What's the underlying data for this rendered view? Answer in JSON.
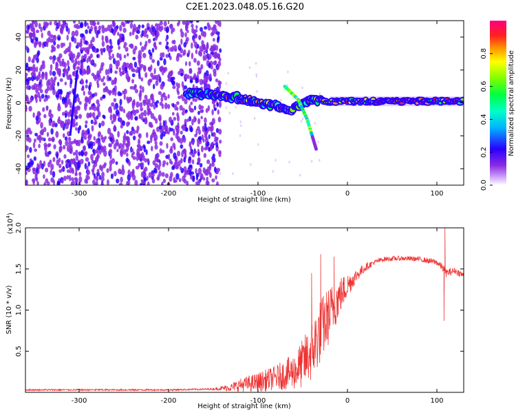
{
  "title": "C2E1.2023.048.05.16.G20",
  "chart_data": [
    {
      "type": "heatmap",
      "xlabel": "Height of straight line (km)",
      "ylabel": "Frequency (Hz)",
      "xlim": [
        -360,
        130
      ],
      "ylim": [
        -50,
        50
      ],
      "xticks": [
        -300,
        -200,
        -100,
        0,
        100
      ],
      "yticks": [
        -40,
        -20,
        0,
        20,
        40
      ],
      "colorbar": {
        "label": "Normalized spectral amplitude",
        "range": [
          0.0,
          1.0
        ],
        "ticks": [
          "0.0",
          "0.2",
          "0.4",
          "0.6",
          "0.8"
        ],
        "colormap": "white-purple-blue-cyan-green-yellow-red-magenta"
      },
      "features": {
        "noise_region_x": [
          -360,
          -150
        ],
        "ridge_points": [
          {
            "x": -180,
            "y": 6
          },
          {
            "x": -150,
            "y": 5
          },
          {
            "x": -120,
            "y": 3
          },
          {
            "x": -100,
            "y": 0
          },
          {
            "x": -80,
            "y": -2
          },
          {
            "x": -65,
            "y": -5
          },
          {
            "x": -50,
            "y": 0
          },
          {
            "x": -40,
            "y": 2
          },
          {
            "x": -20,
            "y": 1
          },
          {
            "x": 0,
            "y": 1
          },
          {
            "x": 50,
            "y": 1
          },
          {
            "x": 100,
            "y": 1
          },
          {
            "x": 130,
            "y": 1
          }
        ],
        "side_branch": [
          {
            "x": -70,
            "y": 10
          },
          {
            "x": -55,
            "y": 2
          },
          {
            "x": -45,
            "y": -10
          },
          {
            "x": -35,
            "y": -28
          }
        ],
        "streak": [
          {
            "x": -310,
            "y": -20
          },
          {
            "x": -302,
            "y": 20
          }
        ]
      }
    },
    {
      "type": "line",
      "xlabel": "Height of straight line (km)",
      "ylabel": "SNR (10 * v/v)",
      "multiplier": "(x10",
      "multiplier_exp": "4",
      "xlim": [
        -360,
        130
      ],
      "ylim": [
        0,
        2.0
      ],
      "xticks": [
        -300,
        -200,
        -100,
        0,
        100
      ],
      "yticks": [
        "0.5",
        "1.0",
        "1.5",
        "2.0"
      ],
      "color": "#ee3333",
      "series": [
        {
          "x": [
            -360,
            -300,
            -250,
            -200,
            -150,
            -130,
            -120,
            -100,
            -80,
            -60,
            -50,
            -40,
            -30,
            -20,
            -10,
            0,
            10,
            20,
            30,
            40,
            60,
            80,
            100,
            108,
            110,
            120,
            130
          ],
          "y": [
            0.03,
            0.03,
            0.03,
            0.03,
            0.04,
            0.06,
            0.09,
            0.12,
            0.18,
            0.25,
            0.35,
            0.5,
            0.75,
            0.95,
            1.15,
            1.3,
            1.42,
            1.52,
            1.58,
            1.62,
            1.63,
            1.62,
            1.58,
            1.5,
            1.45,
            1.48,
            1.42
          ],
          "noise": [
            0.01,
            0.01,
            0.01,
            0.01,
            0.01,
            0.05,
            0.08,
            0.12,
            0.15,
            0.22,
            0.3,
            0.38,
            0.4,
            0.35,
            0.25,
            0.15,
            0.08,
            0.05,
            0.03,
            0.03,
            0.03,
            0.03,
            0.04,
            0.05,
            0.05,
            0.04,
            0.04
          ]
        }
      ],
      "spikes": [
        {
          "x": -40,
          "y": 1.45
        },
        {
          "x": -30,
          "y": 1.68
        },
        {
          "x": -15,
          "y": 1.65
        },
        {
          "x": 108,
          "y": 0.87
        },
        {
          "x": 109,
          "y": 2.0
        }
      ]
    }
  ]
}
